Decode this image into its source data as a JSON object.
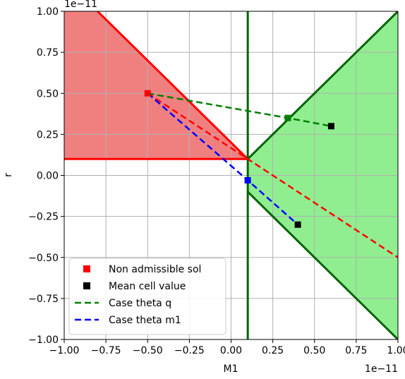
{
  "chart_data": {
    "type": "scatter",
    "xlabel": "M1",
    "ylabel": "r",
    "xlim": [
      -1.0,
      1.0
    ],
    "ylim": [
      -1.0,
      1.0
    ],
    "x_scale_note": "1e−11",
    "y_scale_note": "1e−11",
    "x_ticks": [
      -1.0,
      -0.75,
      -0.5,
      -0.25,
      0.0,
      0.25,
      0.5,
      0.75,
      1.0
    ],
    "x_tick_labels": [
      "−1.00",
      "−0.75",
      "−0.50",
      "−0.25",
      "0.00",
      "0.25",
      "0.50",
      "0.75",
      "1.00"
    ],
    "y_ticks": [
      -1.0,
      -0.75,
      -0.5,
      -0.25,
      0.0,
      0.25,
      0.5,
      0.75,
      1.0
    ],
    "y_tick_labels": [
      "−1.00",
      "−0.75",
      "−0.50",
      "−0.25",
      "0.00",
      "0.25",
      "0.50",
      "0.75",
      "1.00"
    ],
    "grid": true,
    "legend_position": "lower-left",
    "regions": [
      {
        "color": "#f08080",
        "stroke": "#ff0000",
        "polygon": [
          [
            -1.0,
            1.0
          ],
          [
            -0.8,
            1.0
          ],
          [
            0.1,
            0.1
          ],
          [
            -1.0,
            0.1
          ]
        ]
      },
      {
        "color": "#90ee90",
        "stroke": "#006400",
        "polygon": [
          [
            0.1,
            0.1
          ],
          [
            1.0,
            1.0
          ],
          [
            1.0,
            -1.0
          ],
          [
            0.1,
            -0.1
          ]
        ]
      }
    ],
    "lines": [
      {
        "color": "#ff0000",
        "width": 3,
        "points": [
          [
            -0.8,
            1.0
          ],
          [
            0.1,
            0.1
          ]
        ]
      },
      {
        "color": "#ff0000",
        "width": 3,
        "points": [
          [
            -1.0,
            0.1
          ],
          [
            0.1,
            0.1
          ]
        ]
      },
      {
        "color": "#006400",
        "width": 3,
        "points": [
          [
            0.1,
            -1.0
          ],
          [
            0.1,
            1.0
          ]
        ]
      },
      {
        "color": "#006400",
        "width": 3,
        "points": [
          [
            0.1,
            0.1
          ],
          [
            1.0,
            1.0
          ]
        ]
      },
      {
        "color": "#006400",
        "width": 3,
        "points": [
          [
            0.1,
            -0.1
          ],
          [
            1.0,
            -1.0
          ]
        ]
      },
      {
        "color": "#ff0000",
        "width": 2.5,
        "dashed": true,
        "points": [
          [
            -0.5,
            0.5
          ],
          [
            1.0,
            -0.5
          ]
        ]
      }
    ],
    "series": [
      {
        "name": "Case theta q",
        "color": "#008000",
        "dashed": true,
        "points": [
          [
            -0.5,
            0.5
          ],
          [
            0.34,
            0.35
          ],
          [
            0.6,
            0.3
          ]
        ]
      },
      {
        "name": "Case theta m1",
        "color": "#0000ff",
        "dashed": true,
        "points": [
          [
            -0.5,
            0.5
          ],
          [
            0.1,
            -0.03
          ],
          [
            0.4,
            -0.3
          ]
        ]
      }
    ],
    "markers": [
      {
        "color": "#ff0000",
        "x": -0.5,
        "y": 0.5
      },
      {
        "color": "#008000",
        "x": 0.34,
        "y": 0.35
      },
      {
        "color": "#0000ff",
        "x": 0.1,
        "y": -0.03
      },
      {
        "color": "#000000",
        "x": 0.6,
        "y": 0.3
      },
      {
        "color": "#000000",
        "x": 0.4,
        "y": -0.3
      }
    ],
    "legend": [
      {
        "label": "Non admissible sol",
        "kind": "square",
        "color": "#ff0000"
      },
      {
        "label": "Mean cell value",
        "kind": "square",
        "color": "#000000"
      },
      {
        "label": "Case theta q",
        "kind": "dash",
        "color": "#008000"
      },
      {
        "label": "Case theta m1",
        "kind": "dash",
        "color": "#0000ff"
      }
    ]
  }
}
